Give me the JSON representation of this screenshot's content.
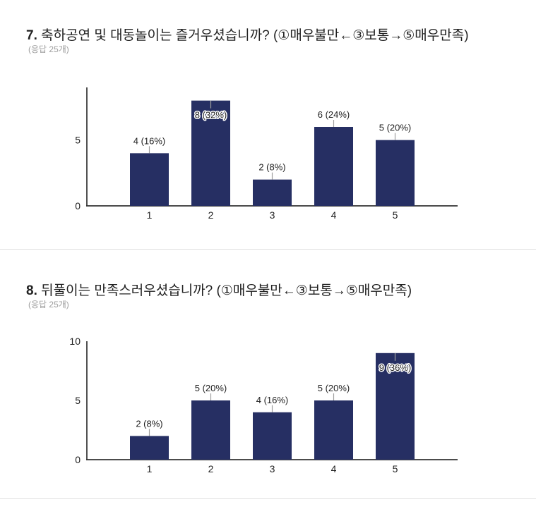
{
  "page": {
    "background": "#ffffff",
    "divider_color": "#e0e0e0"
  },
  "chart_data": [
    {
      "type": "bar",
      "number": "7.",
      "title": "축하공연 및 대동놀이는 즐거우셨습니까? (①매우불만←③보통→⑤매우만족)",
      "subtitle": "(응답 25개)",
      "categories": [
        "1",
        "2",
        "3",
        "4",
        "5"
      ],
      "values": [
        4,
        8,
        2,
        6,
        5
      ],
      "labels": [
        "4 (16%)",
        "8 (32%)",
        "2 (8%)",
        "6 (24%)",
        "5 (20%)"
      ],
      "label_inside": [
        false,
        true,
        false,
        false,
        false
      ],
      "xlabel": "",
      "ylabel": "",
      "ylim": [
        0,
        9
      ],
      "yticks": [
        "0",
        "5"
      ],
      "ytick_values": [
        0,
        5
      ],
      "grid": false,
      "legend": "none",
      "bar_color": "#262f63",
      "axis_color": "#333333",
      "tick_label_color": "#212121",
      "label_color": "#212121",
      "connector_color": "#9e9e9e",
      "label_halo_color": "#ffffff"
    },
    {
      "type": "bar",
      "number": "8.",
      "title": "뒤풀이는 만족스러우셨습니까? (①매우불만←③보통→⑤매우만족)",
      "subtitle": "(응답 25개)",
      "categories": [
        "1",
        "2",
        "3",
        "4",
        "5"
      ],
      "values": [
        2,
        5,
        4,
        5,
        9
      ],
      "labels": [
        "2 (8%)",
        "5 (20%)",
        "4 (16%)",
        "5 (20%)",
        "9 (36%)"
      ],
      "label_inside": [
        false,
        false,
        false,
        false,
        true
      ],
      "xlabel": "",
      "ylabel": "",
      "ylim": [
        0,
        10
      ],
      "yticks": [
        "0",
        "5",
        "10"
      ],
      "ytick_values": [
        0,
        5,
        10
      ],
      "grid": false,
      "legend": "none",
      "bar_color": "#262f63",
      "axis_color": "#333333",
      "tick_label_color": "#212121",
      "label_color": "#212121",
      "connector_color": "#9e9e9e",
      "label_halo_color": "#ffffff"
    }
  ]
}
